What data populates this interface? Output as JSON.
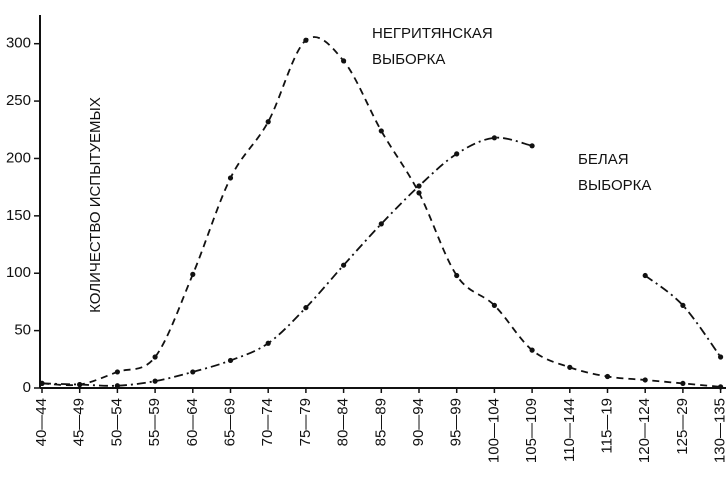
{
  "chart_data": {
    "type": "line",
    "y_label": "КОЛИЧЕСТВО ИСПЫТУЕМЫХ",
    "categories": [
      "40—44",
      "45—49",
      "50—54",
      "55—59",
      "60—64",
      "65—69",
      "70—74",
      "75—79",
      "80—84",
      "85—89",
      "90—94",
      "95—99",
      "100—104",
      "105—109",
      "110—144",
      "115—19",
      "120—124",
      "125—29",
      "130—135"
    ],
    "series": [
      {
        "color": "#111111",
        "dash": "7 5",
        "values": [
          4,
          3,
          14,
          27,
          99,
          183,
          232,
          303,
          285,
          224,
          170,
          98,
          72,
          33,
          18,
          10,
          7,
          4,
          1
        ]
      },
      {
        "color": "#111111",
        "dash": "9 4 2 4",
        "values": [
          4,
          3,
          2,
          6,
          14,
          24,
          39,
          70,
          107,
          143,
          176,
          204,
          218,
          211,
          null,
          null,
          98,
          72,
          27
        ]
      }
    ],
    "annotations": [
      {
        "lines": [
          "НЕГРИТЯНСКАЯ",
          "ВЫБОРКА"
        ]
      },
      {
        "lines": [
          "БЕЛАЯ",
          "ВЫБОРКА"
        ]
      }
    ],
    "ylim": [
      0,
      325
    ],
    "yticks": [
      0,
      50,
      100,
      150,
      200,
      250,
      300
    ]
  }
}
